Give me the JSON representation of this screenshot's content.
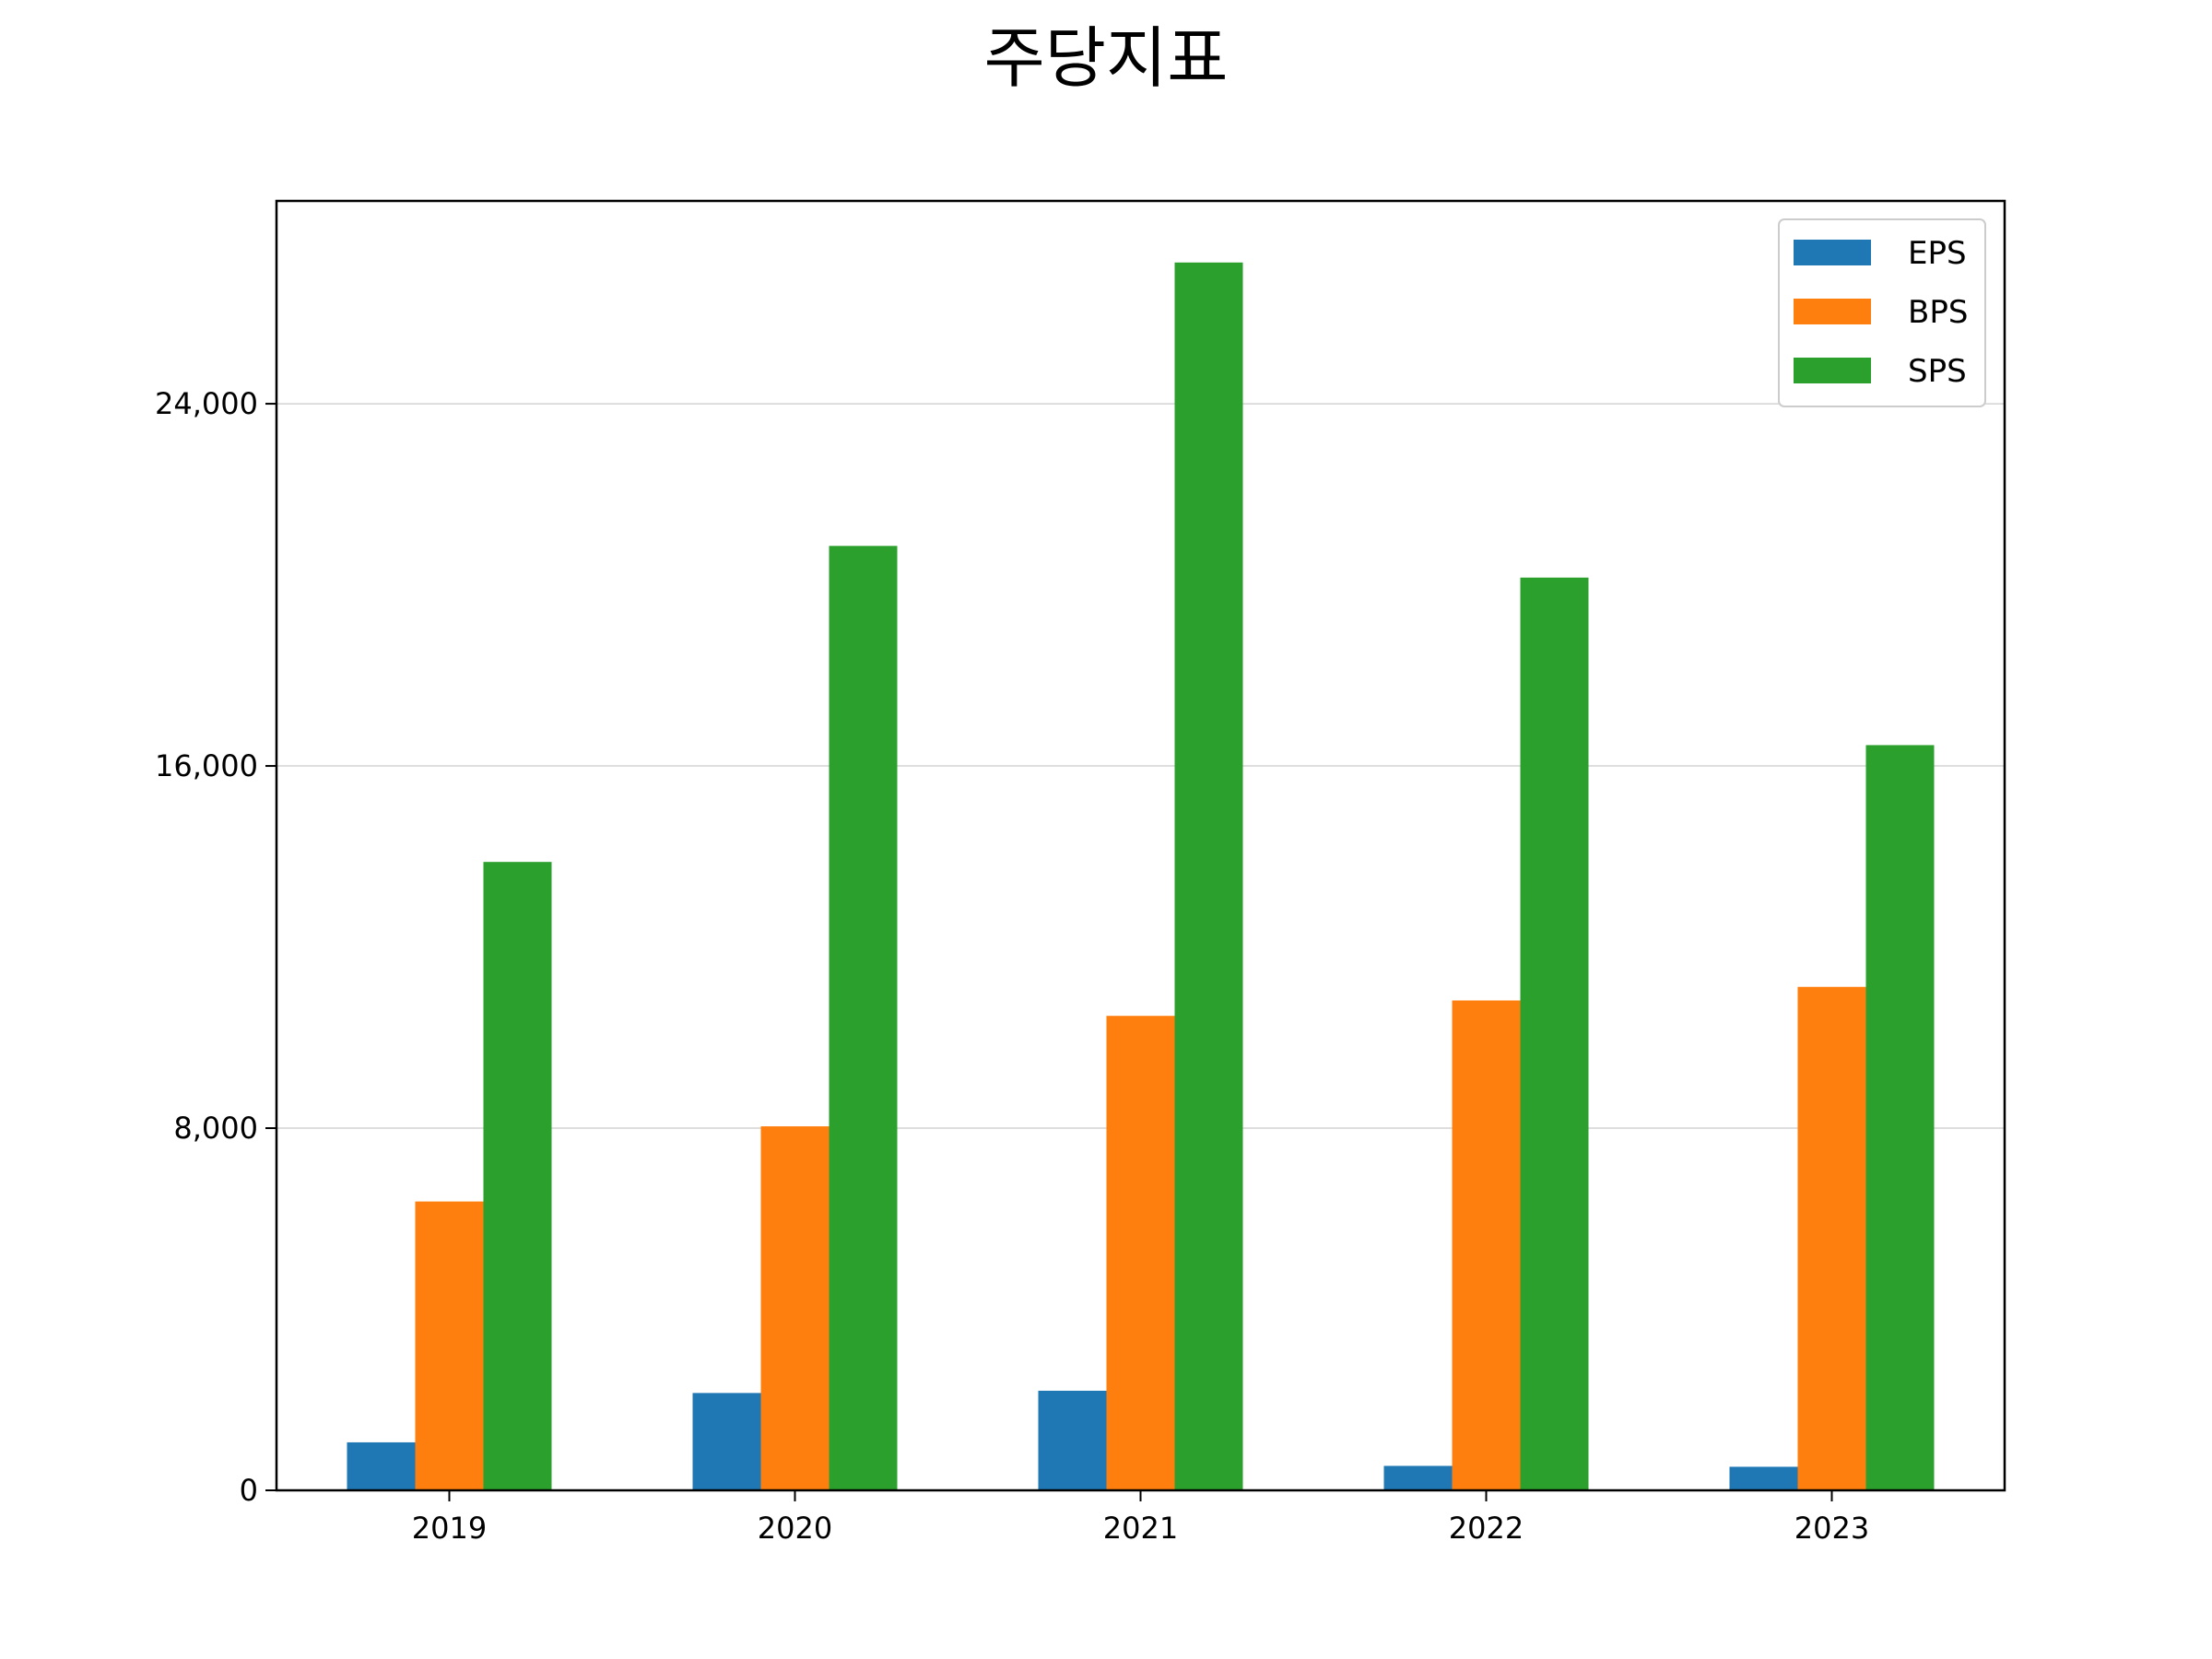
{
  "chart_data": {
    "type": "bar",
    "title": "주당지표",
    "xlabel": "",
    "ylabel": "",
    "categories": [
      "2019",
      "2020",
      "2021",
      "2022",
      "2023"
    ],
    "series": [
      {
        "name": "EPS",
        "color": "#1f77b4",
        "values": [
          1060,
          2150,
          2200,
          540,
          520
        ]
      },
      {
        "name": "BPS",
        "color": "#ff7f0e",
        "values": [
          6380,
          8040,
          10480,
          10820,
          11120
        ]
      },
      {
        "name": "SPS",
        "color": "#2ca02c",
        "values": [
          13880,
          20860,
          27120,
          20160,
          16460
        ]
      }
    ],
    "yticks": [
      0,
      8000,
      16000,
      24000
    ],
    "ytick_labels": [
      "0",
      "8,000",
      "16,000",
      "24,000"
    ],
    "ylim": [
      0,
      28480
    ],
    "grid": "horizontal",
    "legend_position": "top-right"
  }
}
